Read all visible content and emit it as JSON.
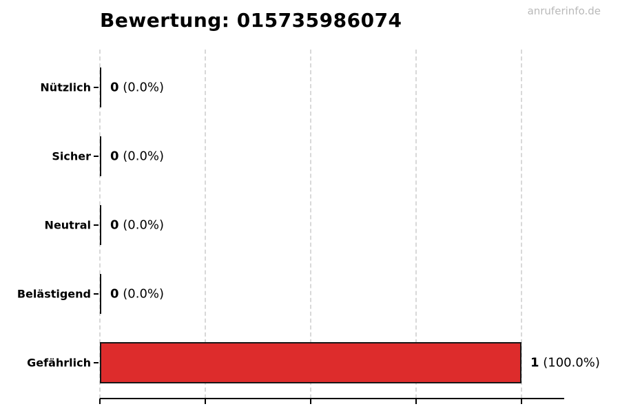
{
  "title": "Bewertung: 015735986074",
  "watermark": "anruferinfo.de",
  "colors": {
    "bar_red": "#dd2c2c",
    "bar_border": "#161616",
    "grid": "#d8d8d8",
    "axis": "#000000",
    "watermark_gray": "#b9b9b9"
  },
  "chart_data": {
    "type": "bar",
    "orientation": "horizontal",
    "title": "Bewertung: 015735986074",
    "categories": [
      "Nützlich",
      "Sicher",
      "Neutral",
      "Belästigend",
      "Gefährlich"
    ],
    "values": [
      0,
      0,
      0,
      0,
      1
    ],
    "counts": [
      "0",
      "0",
      "0",
      "0",
      "1"
    ],
    "pct_labels": [
      " (0.0%)",
      " (0.0%)",
      " (0.0%)",
      " (0.0%)",
      " (100.0%)"
    ],
    "percentages": [
      0,
      0,
      0,
      0,
      100
    ],
    "highlight_index": 4,
    "highlight_color": "#dd2c2c",
    "xlim": [
      0,
      1.1
    ],
    "x_ticks": [
      0,
      0.25,
      0.5,
      0.75,
      1.0
    ],
    "x_tick_labels_visible": false,
    "grid": true,
    "grid_style": "dashed-vertical",
    "legend": false
  }
}
